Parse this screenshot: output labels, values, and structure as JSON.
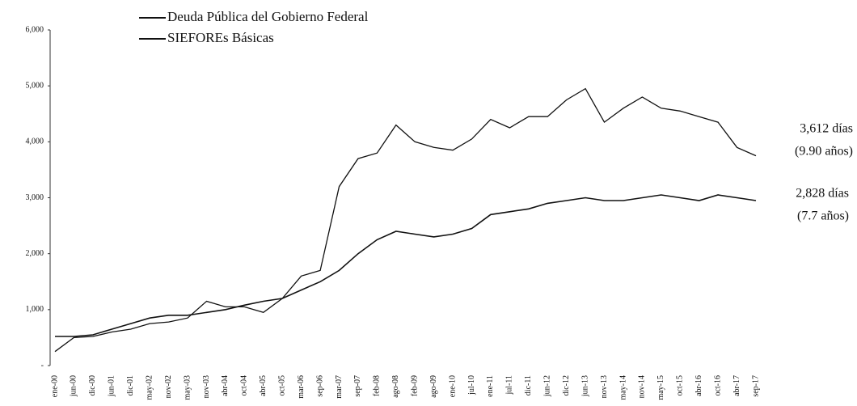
{
  "chart_data": {
    "type": "line",
    "categories": [
      "ene-00",
      "jun-00",
      "dic-00",
      "jun-01",
      "dic-01",
      "may-02",
      "nov-02",
      "may-03",
      "nov-03",
      "abr-04",
      "oct-04",
      "abr-05",
      "oct-05",
      "mar-06",
      "sep-06",
      "mar-07",
      "sep-07",
      "feb-08",
      "ago-08",
      "feb-09",
      "ago-09",
      "ene-10",
      "jul-10",
      "ene-11",
      "jul-11",
      "dic-11",
      "jun-12",
      "dic-12",
      "jun-13",
      "nov-13",
      "may-14",
      "nov-14",
      "may-15",
      "oct-15",
      "abr-16",
      "oct-16",
      "abr-17",
      "sep-17"
    ],
    "series": [
      {
        "name": "Deuda Pública del Gobierno Federal",
        "color": "#111111",
        "values": [
          250,
          500,
          520,
          600,
          650,
          750,
          780,
          850,
          1150,
          1050,
          1050,
          950,
          1200,
          1600,
          1700,
          3200,
          3700,
          3800,
          4300,
          4000,
          3900,
          3850,
          4050,
          4400,
          4250,
          4450,
          4450,
          4750,
          4950,
          4350,
          4600,
          4800,
          4600,
          4550,
          4450,
          4350,
          3900,
          3750
        ]
      },
      {
        "name": "SIEFOREs Básicas",
        "color": "#111111",
        "values": [
          520,
          520,
          550,
          650,
          750,
          850,
          900,
          900,
          950,
          1000,
          1080,
          1150,
          1200,
          1350,
          1500,
          1700,
          2000,
          2250,
          2400,
          2350,
          2300,
          2350,
          2450,
          2700,
          2750,
          2800,
          2900,
          2950,
          3000,
          2950,
          2950,
          3000,
          3050,
          3000,
          2950,
          3050,
          3000,
          2950
        ]
      }
    ],
    "ylim": [
      0,
      6000
    ],
    "yticks": [
      {
        "value": 0,
        "label": "-"
      },
      {
        "value": 1000,
        "label": "1,000"
      },
      {
        "value": 2000,
        "label": "2,000"
      },
      {
        "value": 3000,
        "label": "3,000"
      },
      {
        "value": 4000,
        "label": "4,000"
      },
      {
        "value": 5000,
        "label": "5,000"
      },
      {
        "value": 6000,
        "label": "6,000"
      }
    ],
    "annotations": [
      "3,612 días",
      "(9.90 años)",
      "2,828 días",
      "(7.7 años)"
    ]
  }
}
